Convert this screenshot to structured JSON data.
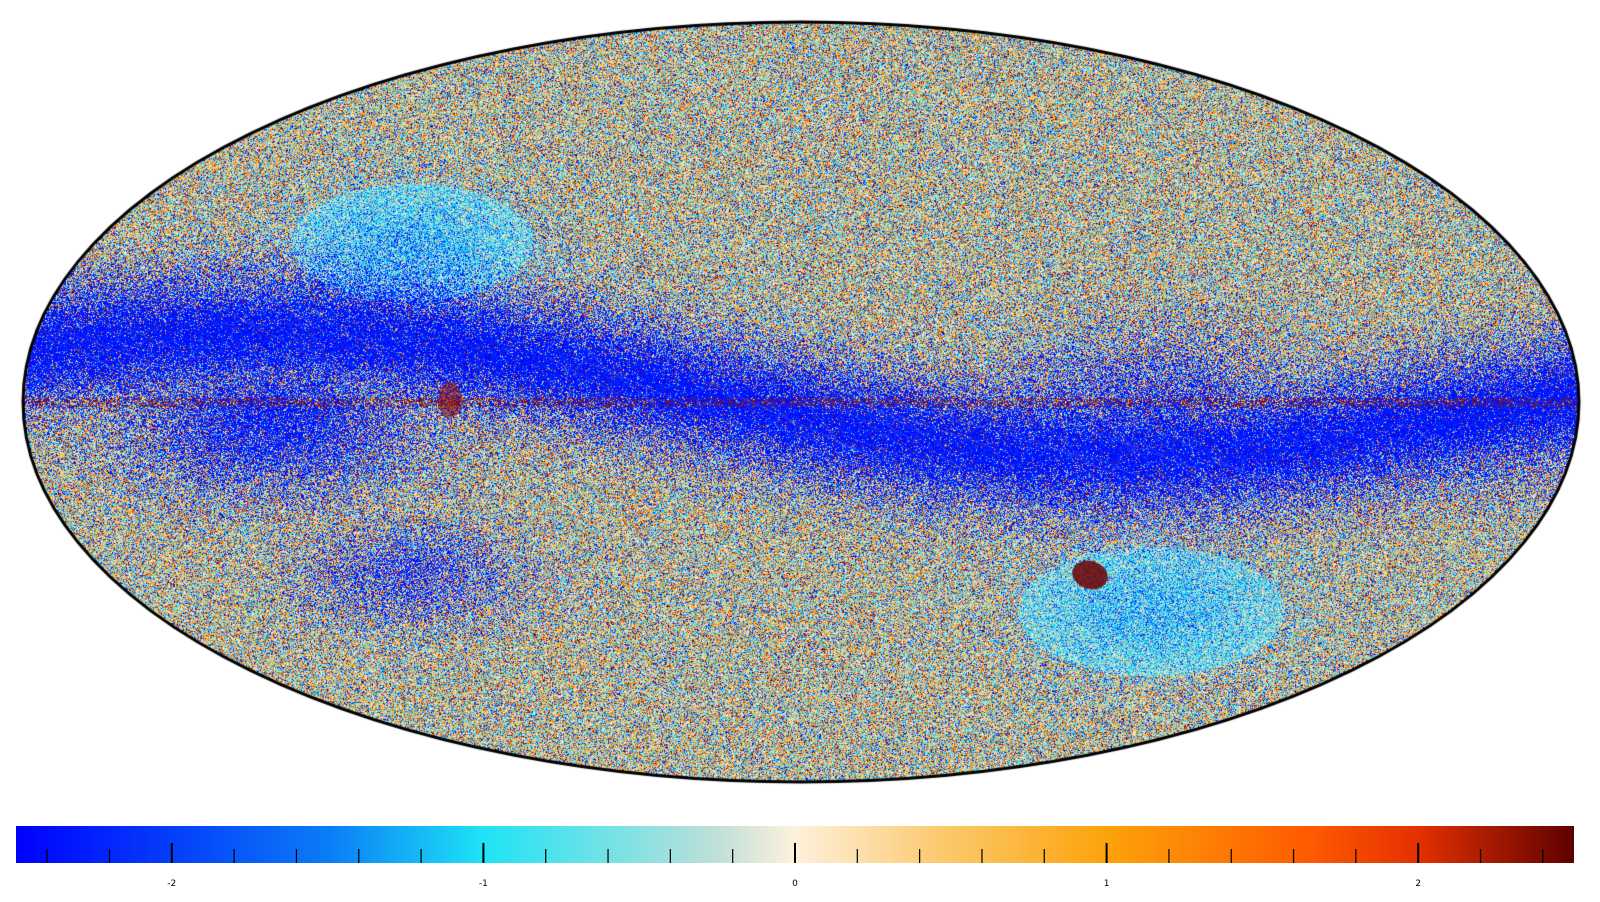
{
  "projection": "mollweide",
  "map": {
    "colormap": [
      "#0000ff",
      "#0a7cf6",
      "#1ee3f6",
      "#bfe0d8",
      "#fef1dc",
      "#fcc768",
      "#fda30a",
      "#ff5a00",
      "#e43000",
      "#5e0000"
    ],
    "colormap_stops": [
      0.0,
      0.2,
      0.3,
      0.45,
      0.5,
      0.6,
      0.7,
      0.83,
      0.9,
      1.0
    ],
    "outline_color": "#000000",
    "background_color": "#ffffff"
  },
  "colorbar": {
    "range": [
      -2.5,
      2.5
    ],
    "major_ticks": [
      -2,
      -1,
      0,
      1,
      2
    ],
    "minor_tick_step": 0.2,
    "labels": [
      {
        "value": -2,
        "text": "-2"
      },
      {
        "value": -1,
        "text": "-1"
      },
      {
        "value": 0,
        "text": "0"
      },
      {
        "value": 1,
        "text": "1"
      },
      {
        "value": 2,
        "text": "2"
      }
    ]
  }
}
